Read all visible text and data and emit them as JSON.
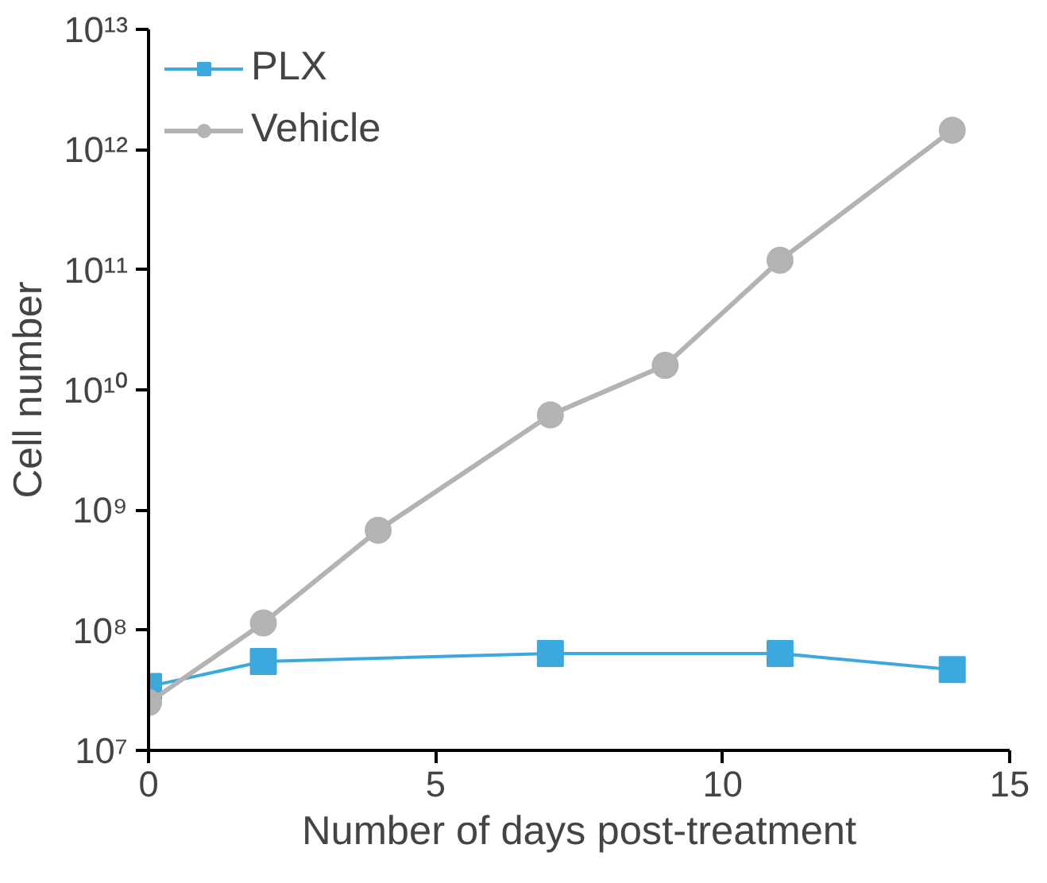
{
  "chart_data": {
    "type": "line",
    "xlabel": "Number of days post-treatment",
    "ylabel": "Cell number",
    "log": "y",
    "xlim": [
      0,
      15
    ],
    "xticks": [
      0,
      5,
      10,
      15
    ],
    "ylim": [
      10000000.0,
      10000000000000.0
    ],
    "yticks": [
      {
        "value": 10000000.0,
        "label": "10⁷"
      },
      {
        "value": 100000000.0,
        "label": "10⁸"
      },
      {
        "value": 1000000000.0,
        "label": "10⁹"
      },
      {
        "value": 10000000000.0,
        "label": "10¹⁰"
      },
      {
        "value": 100000000000.0,
        "label": "10¹¹"
      },
      {
        "value": 1000000000000.0,
        "label": "10¹²"
      },
      {
        "value": 10000000000000.0,
        "label": "10¹³"
      }
    ],
    "grid": false,
    "legend": "top left",
    "series": [
      {
        "name": "PLX",
        "color": "#3ba9de",
        "marker": "square",
        "x": [
          0,
          2,
          7,
          11,
          14
        ],
        "values": [
          34000000.0,
          55000000.0,
          64000000.0,
          64000000.0,
          47000000.0
        ]
      },
      {
        "name": "Vehicle",
        "color": "#b3b3b3",
        "marker": "circle",
        "x": [
          0,
          2,
          4,
          7,
          9,
          11,
          14
        ],
        "values": [
          25000000.0,
          115000000.0,
          680000000.0,
          6200000000.0,
          16000000000.0,
          120000000000.0,
          1450000000000.0
        ]
      }
    ]
  }
}
